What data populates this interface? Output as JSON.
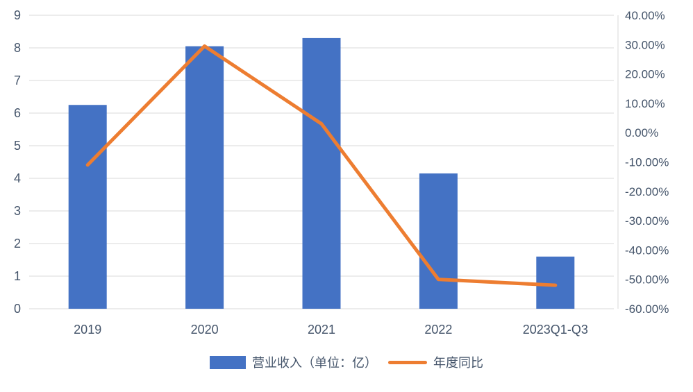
{
  "chart_data": {
    "type": "combo",
    "title": "",
    "categories": [
      "2019",
      "2020",
      "2021",
      "2022",
      "2023Q1-Q3"
    ],
    "series": [
      {
        "name": "营业收入（单位：亿）",
        "type": "bar",
        "axis": "left",
        "color": "#4472C4",
        "values": [
          6.25,
          8.05,
          8.3,
          4.15,
          1.6
        ]
      },
      {
        "name": "年度同比",
        "type": "line",
        "axis": "right",
        "color": "#ED7D31",
        "values": [
          -11,
          29.5,
          3,
          -50,
          -52
        ]
      }
    ],
    "left_axis": {
      "min": 0,
      "max": 9,
      "step": 1,
      "tick_labels": [
        "0",
        "1",
        "2",
        "3",
        "4",
        "5",
        "6",
        "7",
        "8",
        "9"
      ]
    },
    "right_axis": {
      "min": -60,
      "max": 40,
      "step": 10,
      "tick_labels": [
        "-60.00%",
        "-50.00%",
        "-40.00%",
        "-30.00%",
        "-20.00%",
        "-10.00%",
        "0.00%",
        "10.00%",
        "20.00%",
        "30.00%",
        "40.00%"
      ]
    },
    "grid": true,
    "legend_position": "bottom",
    "colors": {
      "bar": "#4472C4",
      "line": "#ED7D31",
      "grid": "#D9D9D9",
      "axis_text": "#44546A",
      "background": "#FFFFFF"
    }
  }
}
